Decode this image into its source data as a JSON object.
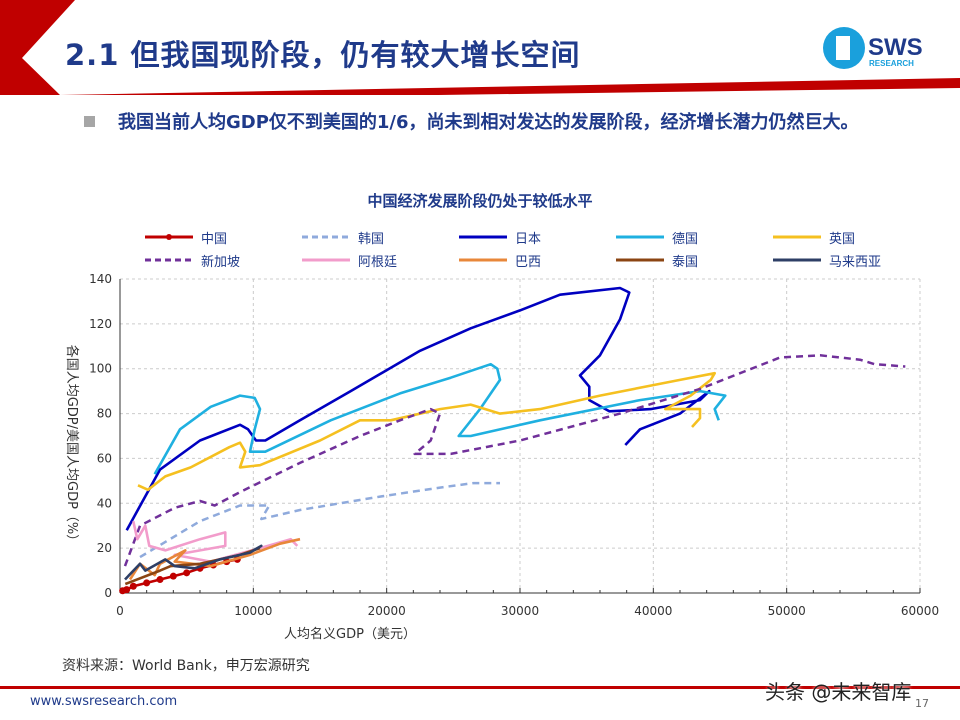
{
  "header": {
    "title": "2.1 但我国现阶段，仍有较大增长空间",
    "logo_text": "SWS",
    "logo_sub": "RESEARCH"
  },
  "intro": "我国当前人均GDP仅不到美国的1/6，尚未到相对发达的发展阶段，经济增长潜力仍然巨大。",
  "footer": {
    "source": "资料来源：World Bank，申万宏源研究",
    "site": "www.swsresearch.com",
    "page": "17",
    "watermark": "头条 @未来智库"
  },
  "colors": {
    "accent": "#c00000",
    "title": "#1f3a8a"
  },
  "chart_data": {
    "type": "line",
    "title": "中国经济发展阶段仍处于较低水平",
    "xlabel": "人均名义GDP（美元）",
    "ylabel": "各国人均GDP/美国人均GDP（%）",
    "xlim": [
      0,
      60000
    ],
    "ylim": [
      0,
      140
    ],
    "xticks": [
      "0",
      "10000",
      "20000",
      "30000",
      "40000",
      "50000",
      "60000"
    ],
    "yticks": [
      "0",
      "20",
      "40",
      "60",
      "80",
      "100",
      "120",
      "140"
    ],
    "grid": true,
    "legend": "top",
    "series": [
      {
        "name": "中国",
        "color": "#c00000",
        "style": "solid-marker",
        "points": [
          [
            200,
            1
          ],
          [
            500,
            1.5
          ],
          [
            1000,
            3
          ],
          [
            2000,
            4.5
          ],
          [
            3000,
            6
          ],
          [
            4000,
            7.5
          ],
          [
            5000,
            9
          ],
          [
            6000,
            11
          ],
          [
            7000,
            12.5
          ],
          [
            8000,
            14
          ],
          [
            8800,
            15
          ]
        ]
      },
      {
        "name": "韩国",
        "color": "#8faadc",
        "style": "dashed",
        "points": [
          [
            1500,
            16
          ],
          [
            6000,
            32
          ],
          [
            9000,
            39
          ],
          [
            11200,
            39
          ],
          [
            10600,
            33
          ],
          [
            13500,
            37
          ],
          [
            19500,
            43
          ],
          [
            24000,
            47
          ],
          [
            26500,
            49
          ],
          [
            28500,
            49
          ]
        ]
      },
      {
        "name": "日本",
        "color": "#0000c0",
        "style": "solid",
        "points": [
          [
            500,
            28
          ],
          [
            3000,
            55
          ],
          [
            6000,
            68
          ],
          [
            9000,
            75
          ],
          [
            9600,
            73
          ],
          [
            10200,
            68
          ],
          [
            10900,
            68
          ],
          [
            13500,
            77
          ],
          [
            17300,
            90
          ],
          [
            22500,
            108
          ],
          [
            26300,
            118
          ],
          [
            30000,
            126
          ],
          [
            33000,
            133
          ],
          [
            37500,
            136
          ],
          [
            38200,
            134
          ],
          [
            37500,
            122
          ],
          [
            36000,
            106
          ],
          [
            34500,
            97
          ],
          [
            35200,
            92
          ],
          [
            35200,
            86
          ],
          [
            36700,
            81
          ],
          [
            39800,
            82
          ],
          [
            43500,
            86
          ],
          [
            44200,
            90
          ],
          [
            42000,
            80
          ],
          [
            39000,
            73
          ],
          [
            37900,
            66
          ]
        ]
      },
      {
        "name": "德国",
        "color": "#1fb0e0",
        "style": "solid",
        "points": [
          [
            2600,
            53
          ],
          [
            4500,
            73
          ],
          [
            6800,
            83
          ],
          [
            9000,
            88
          ],
          [
            10100,
            87
          ],
          [
            10500,
            82
          ],
          [
            10100,
            73
          ],
          [
            9750,
            63
          ],
          [
            10900,
            63
          ],
          [
            15800,
            77
          ],
          [
            21000,
            89
          ],
          [
            24800,
            96
          ],
          [
            27800,
            102
          ],
          [
            28300,
            100
          ],
          [
            28500,
            95
          ],
          [
            27000,
            82
          ],
          [
            25400,
            70
          ],
          [
            26300,
            70
          ],
          [
            31500,
            77
          ],
          [
            39000,
            86
          ],
          [
            43500,
            90
          ],
          [
            45400,
            88
          ],
          [
            44600,
            82
          ],
          [
            44900,
            77
          ]
        ]
      },
      {
        "name": "英国",
        "color": "#f5c020",
        "style": "solid",
        "points": [
          [
            1350,
            48
          ],
          [
            2100,
            46
          ],
          [
            3400,
            52
          ],
          [
            5300,
            56
          ],
          [
            8200,
            65
          ],
          [
            9000,
            67
          ],
          [
            9400,
            63
          ],
          [
            9000,
            56
          ],
          [
            10500,
            57
          ],
          [
            15000,
            68
          ],
          [
            18000,
            77
          ],
          [
            20300,
            77
          ],
          [
            24000,
            82
          ],
          [
            26300,
            84
          ],
          [
            28500,
            80
          ],
          [
            31500,
            82
          ],
          [
            36000,
            88
          ],
          [
            42000,
            95
          ],
          [
            44600,
            98
          ],
          [
            44300,
            95
          ],
          [
            42800,
            88
          ],
          [
            40900,
            82
          ],
          [
            43500,
            82
          ],
          [
            43500,
            78
          ],
          [
            42900,
            74
          ]
        ]
      },
      {
        "name": "新加坡",
        "color": "#70309a",
        "style": "dashed",
        "points": [
          [
            375,
            12
          ],
          [
            1500,
            30
          ],
          [
            4100,
            38
          ],
          [
            6000,
            41
          ],
          [
            7100,
            39
          ],
          [
            9000,
            45
          ],
          [
            13500,
            58
          ],
          [
            18000,
            70
          ],
          [
            21000,
            77
          ],
          [
            23300,
            82
          ],
          [
            24000,
            80
          ],
          [
            23300,
            68
          ],
          [
            22100,
            62
          ],
          [
            24800,
            62
          ],
          [
            30000,
            68
          ],
          [
            37500,
            80
          ],
          [
            43500,
            91
          ],
          [
            49500,
            105
          ],
          [
            52500,
            106
          ],
          [
            55500,
            104
          ],
          [
            56600,
            102
          ],
          [
            58900,
            101
          ]
        ]
      },
      {
        "name": "阿根廷",
        "color": "#f29ccb",
        "style": "solid",
        "points": [
          [
            1000,
            32
          ],
          [
            1300,
            24
          ],
          [
            1900,
            30
          ],
          [
            2200,
            21
          ],
          [
            3400,
            19
          ],
          [
            6000,
            24
          ],
          [
            7900,
            27
          ],
          [
            7900,
            21
          ],
          [
            4100,
            17
          ],
          [
            6800,
            14
          ],
          [
            10500,
            20
          ],
          [
            12800,
            24
          ],
          [
            13300,
            21
          ]
        ]
      },
      {
        "name": "巴西",
        "color": "#e8873a",
        "style": "solid",
        "points": [
          [
            750,
            6
          ],
          [
            1500,
            13
          ],
          [
            2600,
            8
          ],
          [
            3000,
            13
          ],
          [
            4900,
            19
          ],
          [
            4100,
            14
          ],
          [
            6800,
            12
          ],
          [
            9750,
            17
          ],
          [
            12000,
            22
          ],
          [
            13500,
            24
          ]
        ]
      },
      {
        "name": "泰国",
        "color": "#8b4513",
        "style": "solid",
        "points": [
          [
            400,
            4
          ],
          [
            3000,
            10
          ],
          [
            3800,
            12
          ],
          [
            6000,
            13
          ],
          [
            9000,
            17
          ],
          [
            10500,
            20
          ]
        ]
      },
      {
        "name": "马来西亚",
        "color": "#2e3f66",
        "style": "solid",
        "points": [
          [
            375,
            6
          ],
          [
            1500,
            13
          ],
          [
            1900,
            10
          ],
          [
            3400,
            15
          ],
          [
            4100,
            12
          ],
          [
            5600,
            11
          ],
          [
            7500,
            15
          ],
          [
            9750,
            18
          ],
          [
            10600,
            21
          ],
          [
            10000,
            19
          ]
        ]
      }
    ]
  }
}
